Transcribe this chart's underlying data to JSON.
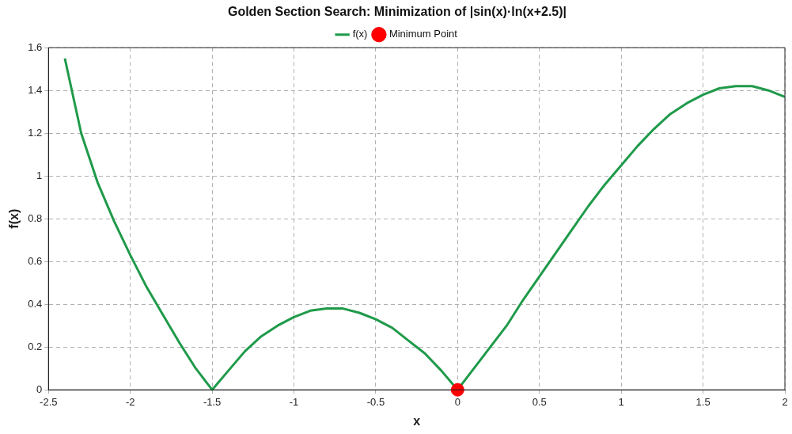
{
  "chart_data": {
    "type": "line",
    "title": "Golden Section Search: Minimization of |sin(x)·ln(x+2.5)|",
    "xlabel": "x",
    "ylabel": "f(x)",
    "series": [
      {
        "name": "f(x)",
        "color": "#1f9a4a",
        "marker": "none",
        "x": [
          -2.4,
          -2.3,
          -2.2,
          -2.1,
          -2.0,
          -1.9,
          -1.8,
          -1.7,
          -1.6,
          -1.5,
          -1.4,
          -1.3,
          -1.2,
          -1.1,
          -1.0,
          -0.9,
          -0.8,
          -0.7,
          -0.6,
          -0.5,
          -0.4,
          -0.3,
          -0.2,
          -0.1,
          0,
          0.1,
          0.2,
          0.3,
          0.4,
          0.5,
          0.6,
          0.7,
          0.8,
          0.9,
          1.0,
          1.1,
          1.2,
          1.3,
          1.4,
          1.5,
          1.6,
          1.7,
          1.8,
          1.9,
          2.0
        ],
        "values": [
          1.55,
          1.2,
          0.97,
          0.79,
          0.63,
          0.48,
          0.35,
          0.22,
          0.1,
          0,
          0.09,
          0.18,
          0.25,
          0.3,
          0.34,
          0.37,
          0.38,
          0.38,
          0.36,
          0.33,
          0.29,
          0.23,
          0.17,
          0.09,
          0,
          0.1,
          0.2,
          0.3,
          0.42,
          0.53,
          0.64,
          0.75,
          0.86,
          0.96,
          1.05,
          1.14,
          1.22,
          1.29,
          1.34,
          1.38,
          1.41,
          1.42,
          1.42,
          1.4,
          1.37
        ]
      },
      {
        "name": "Minimum Point",
        "type": "scatter",
        "color": "#ff0000",
        "marker": "circle",
        "x": [
          0
        ],
        "values": [
          0
        ]
      }
    ],
    "xlim": [
      -2.5,
      2
    ],
    "xticks": [
      -2.5,
      -2,
      -1.5,
      -1,
      -0.5,
      0,
      0.5,
      1,
      1.5,
      2
    ],
    "ylim": [
      0,
      1.6
    ],
    "yticks": [
      0,
      0.2,
      0.4,
      0.6,
      0.8,
      1,
      1.2,
      1.4,
      1.6
    ],
    "grid": true,
    "legend": "top",
    "line_style": "solid"
  }
}
